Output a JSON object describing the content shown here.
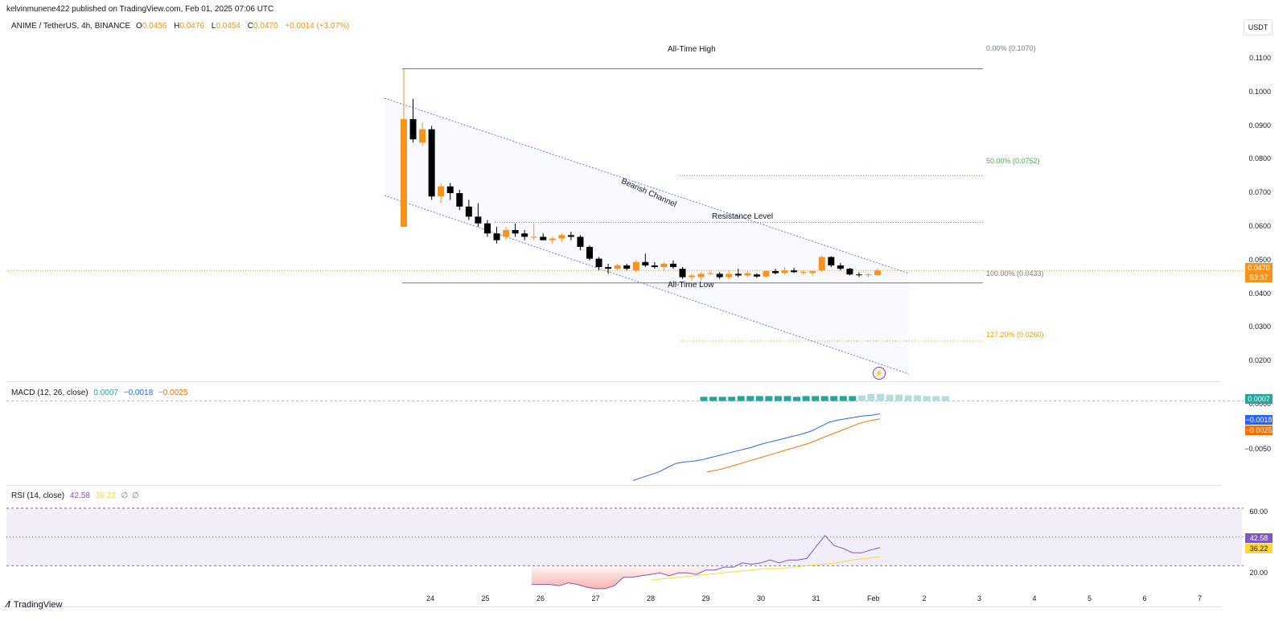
{
  "header": {
    "published": "kelvinmunene422 published on TradingView.com, Feb 01, 2025 07:06 UTC"
  },
  "symbol": {
    "name": "ANIME / TetherUS, 4h, BINANCE",
    "o_label": "O",
    "o_value": "0.0456",
    "h_label": "H",
    "h_value": "0.0476",
    "l_label": "L",
    "l_value": "0.0454",
    "c_label": "C",
    "c_value": "0.0470",
    "change": "+0.0014 (+3.07%)"
  },
  "unit_button": "USDT",
  "price_axis": [
    "0.1100",
    "0.1000",
    "0.0900",
    "0.0800",
    "0.0700",
    "0.0600",
    "0.0500",
    "0.0400",
    "0.0300",
    "0.0200"
  ],
  "current_price": {
    "value": "0.0470",
    "countdown": "53:37"
  },
  "annotations": {
    "ath": "All-Time High",
    "atl": "All-Time Low",
    "resistance": "Resistance Level",
    "channel": "Bearish Channel",
    "fib0": "0.00% (0.1070)",
    "fib50": "50.00% (0.0752)",
    "fib100": "100.00% (0.0433)",
    "fib127": "127.20% (0.0260)"
  },
  "macd": {
    "label": "MACD (12, 26, close)",
    "v1": "0.0007",
    "v2": "−0.0018",
    "v3": "−0.0025",
    "axis_zero": "0.0000",
    "axis_neg": "−0.0050",
    "tag_hist": "0.0007",
    "tag_macd": "−0.0018",
    "tag_signal": "−0.0025"
  },
  "rsi": {
    "label": "RSI (14, close)",
    "v1": "42.58",
    "v2": "36.22",
    "v3": "∅",
    "v4": "∅",
    "axis_60": "60.00",
    "axis_20": "20.00",
    "tag_rsi": "42.58",
    "tag_ma": "36.22"
  },
  "time_axis": [
    "24",
    "25",
    "26",
    "27",
    "28",
    "29",
    "30",
    "31",
    "Feb",
    "2",
    "3",
    "4",
    "5",
    "6",
    "7"
  ],
  "brand": "TradingView",
  "colors": {
    "up": "#f7931a",
    "down": "#000000",
    "macd_line": "#2962ff",
    "signal_line": "#ff6d00",
    "rsi_line": "#7e57c2",
    "rsi_ma": "#fdd835",
    "hist": "#26a69a",
    "fib_green": "#4caf50",
    "fib_orange": "#ff9800"
  },
  "chart_data": {
    "type": "candlestick",
    "title": "ANIME / TetherUS, 4h, BINANCE",
    "ylim": [
      0.015,
      0.115
    ],
    "candles": [
      {
        "o": 0.06,
        "h": 0.107,
        "l": 0.06,
        "c": 0.092
      },
      {
        "o": 0.092,
        "h": 0.098,
        "l": 0.085,
        "c": 0.086
      },
      {
        "o": 0.085,
        "h": 0.091,
        "l": 0.084,
        "c": 0.089
      },
      {
        "o": 0.089,
        "h": 0.09,
        "l": 0.068,
        "c": 0.069
      },
      {
        "o": 0.069,
        "h": 0.073,
        "l": 0.067,
        "c": 0.072
      },
      {
        "o": 0.072,
        "h": 0.073,
        "l": 0.068,
        "c": 0.07
      },
      {
        "o": 0.07,
        "h": 0.071,
        "l": 0.065,
        "c": 0.066
      },
      {
        "o": 0.066,
        "h": 0.068,
        "l": 0.062,
        "c": 0.063
      },
      {
        "o": 0.063,
        "h": 0.067,
        "l": 0.06,
        "c": 0.061
      },
      {
        "o": 0.061,
        "h": 0.062,
        "l": 0.057,
        "c": 0.058
      },
      {
        "o": 0.058,
        "h": 0.06,
        "l": 0.055,
        "c": 0.056
      },
      {
        "o": 0.057,
        "h": 0.06,
        "l": 0.056,
        "c": 0.059
      },
      {
        "o": 0.059,
        "h": 0.061,
        "l": 0.057,
        "c": 0.058
      },
      {
        "o": 0.058,
        "h": 0.059,
        "l": 0.056,
        "c": 0.057
      },
      {
        "o": 0.057,
        "h": 0.061,
        "l": 0.056,
        "c": 0.057
      },
      {
        "o": 0.057,
        "h": 0.058,
        "l": 0.056,
        "c": 0.056
      },
      {
        "o": 0.056,
        "h": 0.057,
        "l": 0.055,
        "c": 0.0565
      },
      {
        "o": 0.0565,
        "h": 0.058,
        "l": 0.0555,
        "c": 0.0575
      },
      {
        "o": 0.0575,
        "h": 0.0585,
        "l": 0.056,
        "c": 0.057
      },
      {
        "o": 0.057,
        "h": 0.0575,
        "l": 0.053,
        "c": 0.054
      },
      {
        "o": 0.054,
        "h": 0.0545,
        "l": 0.05,
        "c": 0.0505
      },
      {
        "o": 0.0505,
        "h": 0.051,
        "l": 0.047,
        "c": 0.048
      },
      {
        "o": 0.048,
        "h": 0.049,
        "l": 0.046,
        "c": 0.0475
      },
      {
        "o": 0.0475,
        "h": 0.049,
        "l": 0.047,
        "c": 0.0485
      },
      {
        "o": 0.0485,
        "h": 0.049,
        "l": 0.047,
        "c": 0.0475
      },
      {
        "o": 0.047,
        "h": 0.05,
        "l": 0.0465,
        "c": 0.0495
      },
      {
        "o": 0.0495,
        "h": 0.052,
        "l": 0.048,
        "c": 0.0485
      },
      {
        "o": 0.0485,
        "h": 0.0495,
        "l": 0.0475,
        "c": 0.048
      },
      {
        "o": 0.048,
        "h": 0.0495,
        "l": 0.047,
        "c": 0.049
      },
      {
        "o": 0.049,
        "h": 0.05,
        "l": 0.0475,
        "c": 0.048
      },
      {
        "o": 0.0475,
        "h": 0.048,
        "l": 0.0445,
        "c": 0.045
      },
      {
        "o": 0.045,
        "h": 0.046,
        "l": 0.044,
        "c": 0.0455
      },
      {
        "o": 0.045,
        "h": 0.0465,
        "l": 0.044,
        "c": 0.046
      },
      {
        "o": 0.046,
        "h": 0.047,
        "l": 0.0455,
        "c": 0.0462
      },
      {
        "o": 0.046,
        "h": 0.0465,
        "l": 0.0445,
        "c": 0.045
      },
      {
        "o": 0.045,
        "h": 0.047,
        "l": 0.0445,
        "c": 0.046
      },
      {
        "o": 0.046,
        "h": 0.0475,
        "l": 0.045,
        "c": 0.0455
      },
      {
        "o": 0.0455,
        "h": 0.0468,
        "l": 0.045,
        "c": 0.0462
      },
      {
        "o": 0.0458,
        "h": 0.0462,
        "l": 0.0448,
        "c": 0.0452
      },
      {
        "o": 0.0452,
        "h": 0.047,
        "l": 0.045,
        "c": 0.0468
      },
      {
        "o": 0.0468,
        "h": 0.0475,
        "l": 0.0458,
        "c": 0.0462
      },
      {
        "o": 0.0462,
        "h": 0.048,
        "l": 0.0458,
        "c": 0.047
      },
      {
        "o": 0.047,
        "h": 0.0478,
        "l": 0.0462,
        "c": 0.0465
      },
      {
        "o": 0.0465,
        "h": 0.0472,
        "l": 0.0458,
        "c": 0.0466
      },
      {
        "o": 0.0462,
        "h": 0.047,
        "l": 0.0455,
        "c": 0.0468
      },
      {
        "o": 0.047,
        "h": 0.0515,
        "l": 0.0465,
        "c": 0.051
      },
      {
        "o": 0.051,
        "h": 0.0512,
        "l": 0.048,
        "c": 0.0485
      },
      {
        "o": 0.0485,
        "h": 0.0492,
        "l": 0.047,
        "c": 0.0475
      },
      {
        "o": 0.0475,
        "h": 0.0478,
        "l": 0.0455,
        "c": 0.0458
      },
      {
        "o": 0.0458,
        "h": 0.0465,
        "l": 0.045,
        "c": 0.0456
      },
      {
        "o": 0.0456,
        "h": 0.0462,
        "l": 0.045,
        "c": 0.0458
      },
      {
        "o": 0.0456,
        "h": 0.0476,
        "l": 0.0454,
        "c": 0.047
      }
    ],
    "fib_levels": [
      {
        "level": "0.00%",
        "price": 0.107
      },
      {
        "level": "50.00%",
        "price": 0.0752
      },
      {
        "level": "100.00%",
        "price": 0.0433
      },
      {
        "level": "127.20%",
        "price": 0.026
      }
    ],
    "resistance": 0.0613,
    "macd_series": {
      "macd": [
        -0.0112,
        -0.0108,
        -0.0104,
        -0.01,
        -0.0094,
        -0.0088,
        -0.0086,
        -0.0085,
        -0.0083,
        -0.008,
        -0.0077,
        -0.0074,
        -0.0071,
        -0.0068,
        -0.0065,
        -0.0061,
        -0.0058,
        -0.0055,
        -0.0052,
        -0.0049,
        -0.0046,
        -0.0042,
        -0.0036,
        -0.003,
        -0.0027,
        -0.0025,
        -0.0023,
        -0.0021,
        -0.002,
        -0.0018
      ],
      "signal": [
        -0.01,
        -0.0098,
        -0.0096,
        -0.0093,
        -0.009,
        -0.0087,
        -0.0084,
        -0.0081,
        -0.0078,
        -0.0075,
        -0.0072,
        -0.0069,
        -0.0066,
        -0.0063,
        -0.006,
        -0.0056,
        -0.0052,
        -0.0048,
        -0.0044,
        -0.004,
        -0.0036,
        -0.0032,
        -0.0029,
        -0.0027,
        -0.0025
      ],
      "histogram": [
        0.0006,
        0.0006,
        0.0006,
        0.0006,
        0.0007,
        0.0007,
        0.0007,
        0.0007,
        0.0007,
        0.0007,
        0.0006,
        0.0007,
        0.0007,
        0.0007,
        0.0007,
        0.0007,
        0.0007,
        0.0008,
        0.001,
        0.001,
        0.0009,
        0.0009,
        0.0008,
        0.0008,
        0.0007,
        0.0007,
        0.0007
      ]
    },
    "rsi_series": {
      "rsi": [
        17,
        17,
        17,
        16,
        18,
        17,
        15,
        14,
        14,
        16,
        22,
        22,
        23,
        24,
        25,
        23,
        25,
        25,
        24,
        27,
        27,
        29,
        29,
        32,
        31,
        32,
        34,
        32,
        34,
        34,
        35,
        43,
        51,
        44,
        42,
        39,
        39,
        41,
        42.58
      ],
      "ma": [
        20,
        21,
        22,
        23,
        24,
        25,
        26,
        27,
        28,
        28,
        29,
        30,
        31,
        32,
        34,
        35,
        36.22
      ],
      "bands": [
        70,
        50,
        30
      ]
    }
  }
}
